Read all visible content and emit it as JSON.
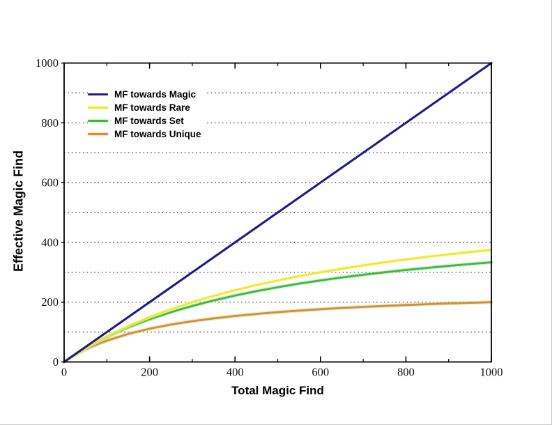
{
  "chart_data": {
    "type": "line",
    "title": "",
    "xlabel": "Total Magic Find",
    "ylabel": "Effective Magic Find",
    "xlim": [
      0,
      1000
    ],
    "ylim": [
      0,
      1000
    ],
    "x_major_ticks": [
      0,
      200,
      400,
      600,
      800,
      1000
    ],
    "y_major_ticks": [
      0,
      200,
      400,
      600,
      800,
      1000
    ],
    "minor_tick_interval": 100,
    "gridlines": {
      "orientation": "horizontal",
      "interval": 100,
      "style": "dotted",
      "color": "#2b2b2b"
    },
    "legend_position": "top-left-inside",
    "frame_color": "#000000",
    "tick_label_color": "#111111",
    "series": [
      {
        "name": "MF towards Magic",
        "color": "#1c1c8a",
        "glow": "#8c8cd0",
        "x": [
          0,
          1000
        ],
        "y": [
          0,
          1000
        ]
      },
      {
        "name": "MF towards Rare",
        "color": "#efe834",
        "glow": "#fbf9a8",
        "x": [
          0,
          10,
          25,
          50,
          75,
          100,
          150,
          200,
          250,
          300,
          350,
          400,
          450,
          500,
          550,
          600,
          650,
          700,
          750,
          800,
          850,
          900,
          950,
          1000
        ],
        "y": [
          0,
          9.8,
          24,
          46.2,
          66.7,
          85.7,
          120,
          150,
          176.5,
          200,
          221.1,
          240,
          257.1,
          272.7,
          287,
          300,
          312,
          323.1,
          333.3,
          342.9,
          351.7,
          360,
          367.7,
          375
        ]
      },
      {
        "name": "MF towards Set",
        "color": "#3eb83e",
        "glow": "#b5e4ae",
        "x": [
          0,
          10,
          25,
          50,
          75,
          100,
          150,
          200,
          250,
          300,
          350,
          400,
          450,
          500,
          550,
          600,
          650,
          700,
          750,
          800,
          850,
          900,
          950,
          1000
        ],
        "y": [
          0,
          9.8,
          23.8,
          45.5,
          65.2,
          83.3,
          115.4,
          142.9,
          166.7,
          187.5,
          205.9,
          222.2,
          236.8,
          250,
          261.9,
          272.7,
          282.6,
          291.7,
          300,
          307.7,
          314.8,
          321.4,
          327.6,
          333.3
        ]
      },
      {
        "name": "MF towards Unique",
        "color": "#cc9233",
        "glow": "#e8d09c",
        "x": [
          0,
          10,
          25,
          50,
          75,
          100,
          150,
          200,
          250,
          300,
          350,
          400,
          450,
          500,
          550,
          600,
          650,
          700,
          750,
          800,
          850,
          900,
          950,
          1000
        ],
        "y": [
          0,
          9.6,
          22.7,
          41.7,
          57.7,
          71.4,
          93.8,
          111.1,
          125,
          136.4,
          145.8,
          153.8,
          160.7,
          166.7,
          171.9,
          176.5,
          180.6,
          184.2,
          187.5,
          190.5,
          193.2,
          195.7,
          197.9,
          200
        ]
      }
    ]
  }
}
